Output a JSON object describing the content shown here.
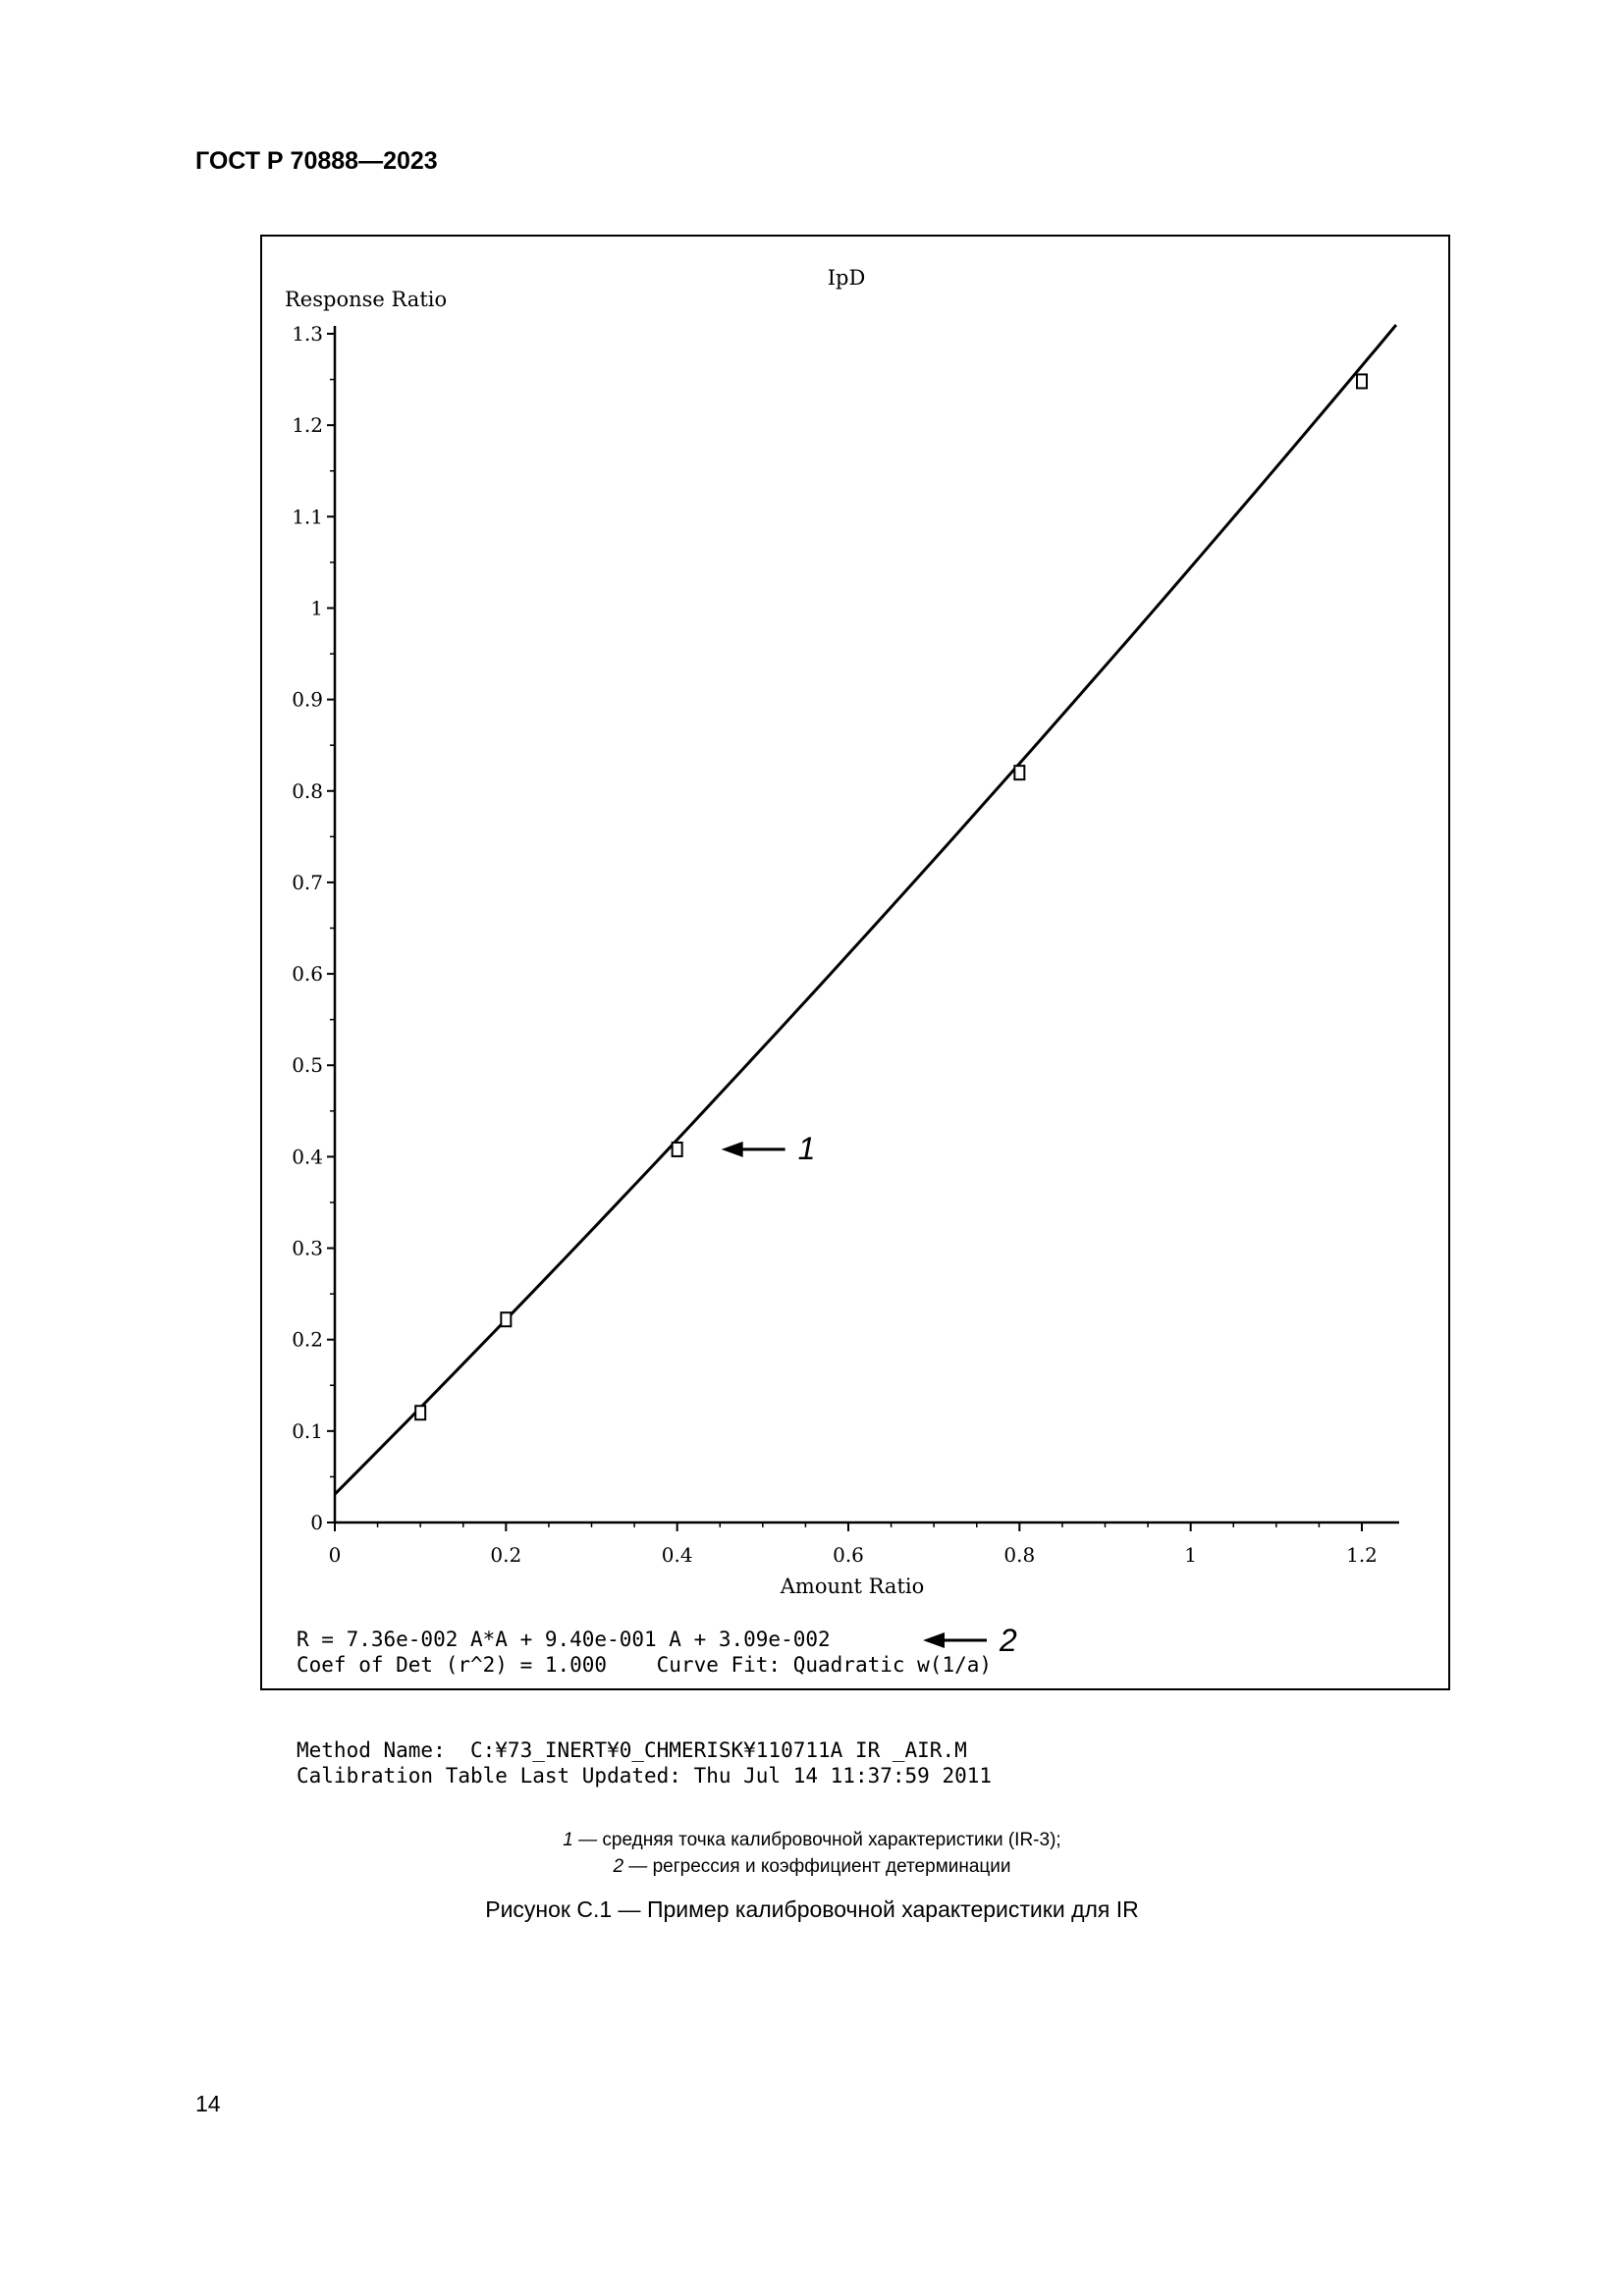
{
  "header": {
    "standard": "ГОСТ Р 70888—2023"
  },
  "chart_data": {
    "type": "scatter",
    "title": "IpD",
    "xlabel": "Amount Ratio",
    "ylabel": "Response Ratio",
    "xlim": [
      0,
      1.2
    ],
    "ylim": [
      0,
      1.3
    ],
    "x_ticks": [
      "0",
      "0.2",
      "0.4",
      "0.6",
      "0.8",
      "1",
      "1.2"
    ],
    "y_ticks": [
      "0",
      "0.1",
      "0.2",
      "0.3",
      "0.4",
      "0.5",
      "0.6",
      "0.7",
      "0.8",
      "0.9",
      "1",
      "1.1",
      "1.2",
      "1.3"
    ],
    "series": [
      {
        "points": [
          [
            0.1,
            0.12
          ],
          [
            0.2,
            0.222
          ],
          [
            0.4,
            0.408
          ],
          [
            0.8,
            0.82
          ],
          [
            1.2,
            1.248
          ]
        ]
      }
    ],
    "fit": {
      "a": 0.0736,
      "b": 0.94,
      "c": 0.0309,
      "x_range": [
        0,
        1.24
      ]
    },
    "annotations": [
      {
        "label": "1",
        "x": 0.4,
        "y": 0.408
      }
    ]
  },
  "regression": {
    "line1": "R = 7.36e-002 A*A + 9.40e-001 A + 3.09e-002",
    "line1_marker": "2",
    "line2": "Coef of Det (r^2) = 1.000    Curve Fit: Quadratic w(1/a)"
  },
  "method": {
    "line1": "Method Name:  C:¥73_INERT¥0_CHMERISK¥110711A IR _AIR.M",
    "line2": "Calibration Table Last Updated: Thu Jul 14 11:37:59 2011"
  },
  "legend": {
    "item1_num": "1",
    "item1_text": " — средняя точка калибровочной характеристики (IR-3);",
    "item2_num": "2",
    "item2_text": " — регрессия и коэффициент детерминации"
  },
  "caption": "Рисунок С.1 — Пример калибровочной характеристики для IR",
  "page_number": "14"
}
